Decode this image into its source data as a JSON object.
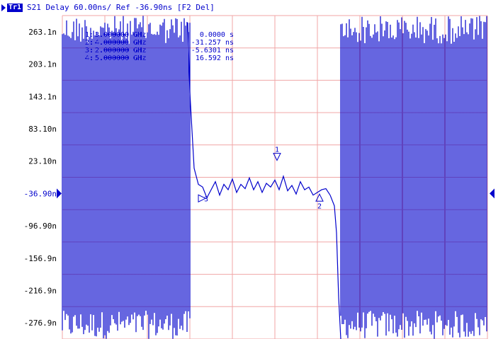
{
  "header": {
    "trace_badge": "Tr1",
    "title": "S21 Delay 60.00ns/ Ref -36.90ns [F2 Del]"
  },
  "colors": {
    "trace": "#0000cc",
    "grid": "#f0a6a6",
    "background": "#ffffff",
    "axis_text": "#000000"
  },
  "markers": {
    "table": [
      {
        "label": "1:",
        "freq": "3.000000 GHz",
        "value": "0.0000 s"
      },
      {
        "label": "2:",
        "freq": "4.000000 GHz",
        "value": "-31.257 ns"
      },
      {
        "label": "3:",
        "freq": "2.000000 GHz",
        "value": "-5.6301 ns"
      },
      {
        "label": "4:",
        "freq": "5.000000 GHz",
        "value": "16.592 ns"
      }
    ],
    "points": [
      {
        "id": "1",
        "x": 0.505,
        "y": 21.8,
        "dir": "down"
      },
      {
        "id": "2",
        "x": 0.605,
        "y": -35.5,
        "dir": "up"
      },
      {
        "id": "3",
        "x": 0.34,
        "y": -46.0,
        "dir": "right"
      }
    ]
  },
  "chart_data": {
    "type": "line",
    "title": "S21 Delay 60.00ns/ Ref -36.90ns [F2 Del]",
    "xlabel": "",
    "ylabel": "",
    "units": "ns",
    "ref_value": -36.9,
    "scale_per_div": 60.0,
    "ylim": [
      -306.9,
      293.1
    ],
    "xlim": [
      0,
      1
    ],
    "grid": true,
    "y_ticks": [
      263.1,
      203.1,
      143.1,
      83.1,
      23.1,
      -36.9,
      -96.9,
      -156.9,
      -216.9,
      -276.9
    ],
    "y_tick_labels": [
      "263.1n",
      "203.1n",
      "143.1n",
      "83.10n",
      "23.10n",
      "-36.90n",
      "-96.90n",
      "-156.9n",
      "-216.9n",
      "-276.9n"
    ],
    "series": [
      {
        "style": "dense-noise-band",
        "x_range": [
          0,
          0.3
        ],
        "y_range": [
          -306.9,
          293.1
        ]
      },
      {
        "style": "line",
        "x": [
          0.295,
          0.3,
          0.31,
          0.32,
          0.33,
          0.34,
          0.35,
          0.36,
          0.37,
          0.38,
          0.39,
          0.4,
          0.41,
          0.42,
          0.43,
          0.44,
          0.45,
          0.46,
          0.47,
          0.48,
          0.49,
          0.5,
          0.51,
          0.52,
          0.53,
          0.54,
          0.55,
          0.56,
          0.57,
          0.58,
          0.59,
          0.6,
          0.61,
          0.62,
          0.63
        ],
        "y": [
          280,
          150,
          10,
          -20,
          -25,
          -45,
          -30,
          -15,
          -40,
          -20,
          -30,
          -10,
          -35,
          -20,
          -28,
          -8,
          -30,
          -15,
          -35,
          -18,
          -25,
          -12,
          -30,
          -5,
          -32,
          -22,
          -38,
          -15,
          -30,
          -25,
          -40,
          -35,
          -30,
          -28,
          -40
        ]
      },
      {
        "style": "line",
        "x": [
          0.63,
          0.64,
          0.645,
          0.65,
          0.655
        ],
        "y": [
          -40,
          -60,
          -110,
          -230,
          -306.9
        ]
      },
      {
        "style": "dense-noise-band",
        "x_range": [
          0.655,
          1.0
        ],
        "y_range": [
          -306.9,
          293.1
        ]
      }
    ]
  }
}
